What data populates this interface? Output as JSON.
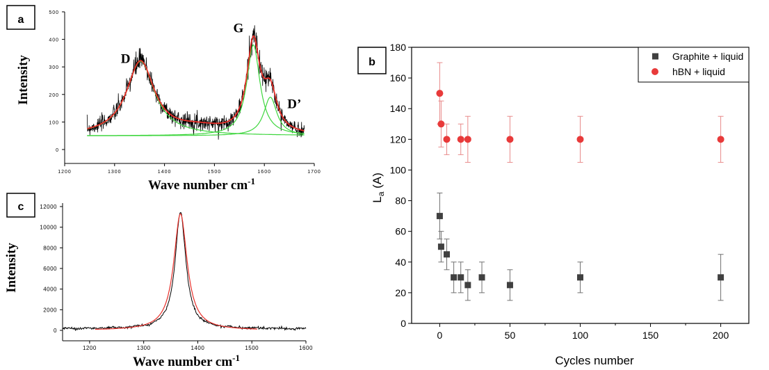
{
  "colors": {
    "noisy_spectrum": "#000000",
    "fit_red": "#e8302a",
    "component_green": "#3ed63e",
    "graphite": "#404040",
    "hbn": "#e83a3a",
    "hbn_errorbar": "#e88a8a",
    "graphite_errorbar": "#707070"
  },
  "chart_data": [
    {
      "panel": "a",
      "type": "line",
      "xlabel": "Wave number cm-1",
      "ylabel": "Intensity",
      "xlim": [
        1200,
        1700
      ],
      "ylim": [
        0,
        500
      ],
      "xticks": [
        1200,
        1300,
        1400,
        1500,
        1600,
        1700
      ],
      "yticks": [
        0,
        100,
        200,
        300,
        400,
        500
      ],
      "annotations": [
        {
          "text": "D",
          "x": 1322,
          "y": 315
        },
        {
          "text": "G",
          "x": 1548,
          "y": 425
        },
        {
          "text": "D’",
          "x": 1660,
          "y": 150
        }
      ],
      "baseline": 50,
      "peaks": [
        {
          "center": 1352,
          "height": 270,
          "width": 34
        },
        {
          "center": 1578,
          "height": 330,
          "width": 16
        },
        {
          "center": 1612,
          "height": 140,
          "width": 16
        }
      ],
      "x_range": [
        1245,
        1680
      ],
      "series": [
        {
          "role": "noisy_spectrum"
        },
        {
          "role": "fit"
        },
        {
          "role": "components"
        }
      ]
    },
    {
      "panel": "c",
      "type": "line",
      "xlabel": "Wave number cm-1",
      "ylabel": "Intensity",
      "xlim": [
        1150,
        1600
      ],
      "ylim": [
        0,
        12000
      ],
      "xticks": [
        1200,
        1300,
        1400,
        1500,
        1600
      ],
      "yticks": [
        0,
        2000,
        4000,
        6000,
        8000,
        10000,
        12000
      ],
      "peak": {
        "center": 1368,
        "height": 11300,
        "width": 12
      },
      "fit_peak": {
        "center": 1368,
        "height": 11300,
        "width": 15
      },
      "x_range_measured": [
        1150,
        1600
      ],
      "x_range_fit": [
        1210,
        1510
      ]
    },
    {
      "panel": "b",
      "type": "scatter",
      "xlabel": "Cycles number",
      "ylabel": "La (A)",
      "ylabel_main": "L",
      "ylabel_sub": "a",
      "ylabel_rest": " (A)",
      "xlim": [
        -20,
        220
      ],
      "ylim": [
        0,
        180
      ],
      "xticks": [
        0,
        50,
        100,
        150,
        200
      ],
      "yticks": [
        0,
        20,
        40,
        60,
        80,
        100,
        120,
        140,
        160,
        180
      ],
      "legend_position": "top-right",
      "series": [
        {
          "name": "Graphite + liquid",
          "marker": "square",
          "points": [
            {
              "x": 0,
              "y": 70,
              "err_low": 15,
              "err_high": 15
            },
            {
              "x": 1,
              "y": 50,
              "err_low": 10,
              "err_high": 10
            },
            {
              "x": 5,
              "y": 45,
              "err_low": 10,
              "err_high": 10
            },
            {
              "x": 10,
              "y": 30,
              "err_low": 10,
              "err_high": 10
            },
            {
              "x": 15,
              "y": 30,
              "err_low": 10,
              "err_high": 10
            },
            {
              "x": 20,
              "y": 25,
              "err_low": 10,
              "err_high": 10
            },
            {
              "x": 30,
              "y": 30,
              "err_low": 10,
              "err_high": 10
            },
            {
              "x": 50,
              "y": 25,
              "err_low": 10,
              "err_high": 10
            },
            {
              "x": 100,
              "y": 30,
              "err_low": 10,
              "err_high": 10
            },
            {
              "x": 200,
              "y": 30,
              "err_low": 15,
              "err_high": 15
            }
          ]
        },
        {
          "name": "hBN + liquid",
          "marker": "circle",
          "points": [
            {
              "x": 0,
              "y": 150,
              "err_low": 20,
              "err_high": 20
            },
            {
              "x": 1,
              "y": 130,
              "err_low": 15,
              "err_high": 15
            },
            {
              "x": 5,
              "y": 120,
              "err_low": 10,
              "err_high": 10
            },
            {
              "x": 15,
              "y": 120,
              "err_low": 10,
              "err_high": 10
            },
            {
              "x": 20,
              "y": 120,
              "err_low": 15,
              "err_high": 15
            },
            {
              "x": 50,
              "y": 120,
              "err_low": 15,
              "err_high": 15
            },
            {
              "x": 100,
              "y": 120,
              "err_low": 15,
              "err_high": 15
            },
            {
              "x": 200,
              "y": 120,
              "err_low": 15,
              "err_high": 15
            }
          ]
        }
      ]
    }
  ],
  "labels": {
    "a": "a",
    "b": "b",
    "c": "c"
  }
}
